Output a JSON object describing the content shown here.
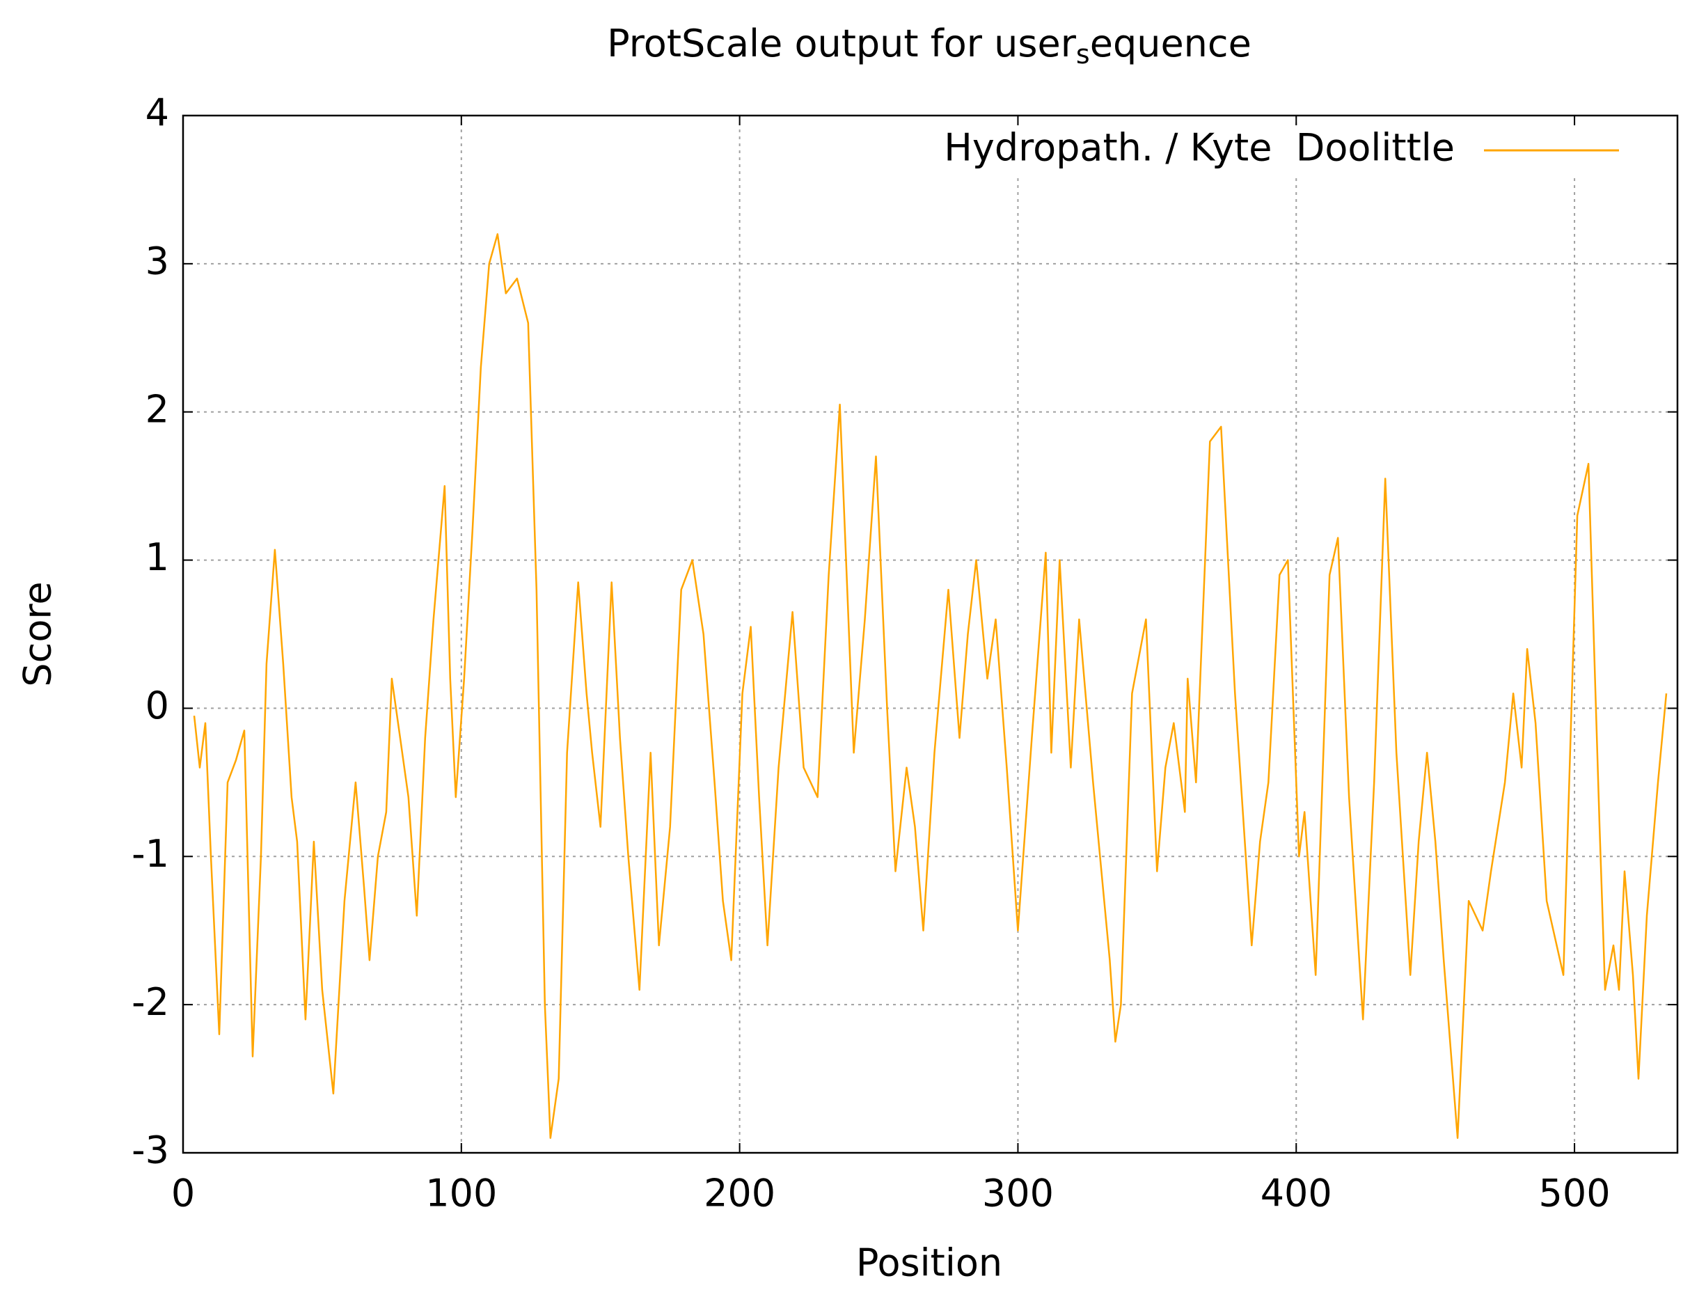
{
  "chart_data": {
    "type": "line",
    "title": [
      "ProtScale output for user",
      "s",
      "equence"
    ],
    "xlabel": "Position",
    "ylabel": "Score",
    "x": [
      4,
      6,
      8,
      10,
      13,
      16,
      19,
      22,
      25,
      28,
      30,
      33,
      36,
      39,
      41,
      44,
      47,
      50,
      54,
      58,
      62,
      65,
      67,
      70,
      73,
      75,
      78,
      81,
      84,
      87,
      90,
      94,
      96,
      98,
      101,
      104,
      107,
      110,
      113,
      116,
      120,
      124,
      127,
      130,
      132,
      135,
      138,
      142,
      145,
      147,
      150,
      154,
      157,
      160,
      164,
      168,
      171,
      175,
      179,
      183,
      187,
      191,
      194,
      197,
      201,
      204,
      207,
      210,
      214,
      219,
      223,
      228,
      232,
      236,
      241,
      245,
      249,
      253,
      256,
      260,
      263,
      266,
      270,
      275,
      279,
      282,
      285,
      289,
      292,
      296,
      300,
      305,
      310,
      312,
      315,
      319,
      322,
      327,
      330,
      333,
      335,
      337,
      341,
      346,
      350,
      353,
      356,
      360,
      361,
      364,
      369,
      373,
      378,
      384,
      387,
      390,
      394,
      397,
      401,
      403,
      407,
      412,
      415,
      419,
      424,
      428,
      432,
      436,
      441,
      444,
      447,
      450,
      453,
      458,
      462,
      467,
      470,
      475,
      478,
      481,
      483,
      486,
      490,
      496,
      501,
      505,
      509,
      511,
      514,
      516,
      518,
      521,
      523,
      526,
      530,
      533
    ],
    "series": [
      {
        "name": "Hydropath. / Kyte  Doolittle",
        "color": "#ffa500",
        "values": [
          -0.05,
          -0.4,
          -0.1,
          -1.0,
          -2.2,
          -0.5,
          -0.35,
          -0.15,
          -2.35,
          -1.0,
          0.3,
          1.07,
          0.3,
          -0.6,
          -0.9,
          -2.1,
          -0.9,
          -1.9,
          -2.6,
          -1.3,
          -0.5,
          -1.2,
          -1.7,
          -1.0,
          -0.7,
          0.2,
          -0.2,
          -0.6,
          -1.4,
          -0.2,
          0.6,
          1.5,
          0.2,
          -0.6,
          0.2,
          1.2,
          2.3,
          3.0,
          3.2,
          2.8,
          2.9,
          2.6,
          0.8,
          -2.0,
          -2.9,
          -2.5,
          -0.3,
          0.85,
          0.1,
          -0.3,
          -0.8,
          0.85,
          -0.2,
          -1.0,
          -1.9,
          -0.3,
          -1.6,
          -0.8,
          0.8,
          1.0,
          0.5,
          -0.5,
          -1.3,
          -1.7,
          0.1,
          0.55,
          -0.6,
          -1.6,
          -0.4,
          0.65,
          -0.4,
          -0.6,
          0.9,
          2.05,
          -0.3,
          0.6,
          1.7,
          0.0,
          -1.1,
          -0.4,
          -0.8,
          -1.5,
          -0.3,
          0.8,
          -0.2,
          0.5,
          1.0,
          0.2,
          0.6,
          -0.4,
          -1.5,
          -0.2,
          1.05,
          -0.3,
          1.0,
          -0.4,
          0.6,
          -0.5,
          -1.1,
          -1.7,
          -2.25,
          -2.0,
          0.1,
          0.6,
          -1.1,
          -0.4,
          -0.1,
          -0.7,
          0.2,
          -0.5,
          1.8,
          1.9,
          0.1,
          -1.6,
          -0.9,
          -0.5,
          0.9,
          1.0,
          -1.0,
          -0.7,
          -1.8,
          0.9,
          1.15,
          -0.6,
          -2.1,
          -0.5,
          1.55,
          -0.3,
          -1.8,
          -0.9,
          -0.3,
          -0.9,
          -1.7,
          -2.9,
          -1.3,
          -1.5,
          -1.1,
          -0.5,
          0.1,
          -0.4,
          0.4,
          -0.1,
          -1.3,
          -1.8,
          1.3,
          1.65,
          -0.8,
          -1.9,
          -1.6,
          -1.9,
          -1.1,
          -1.8,
          -2.5,
          -1.4,
          -0.5,
          0.1
        ]
      }
    ],
    "xlim": [
      0,
      537
    ],
    "ylim": [
      -3,
      4
    ],
    "xticks": [
      0,
      100,
      200,
      300,
      400,
      500
    ],
    "yticks": [
      -3,
      -2,
      -1,
      0,
      1,
      2,
      3,
      4
    ],
    "grid": true,
    "legend": "top-right"
  }
}
